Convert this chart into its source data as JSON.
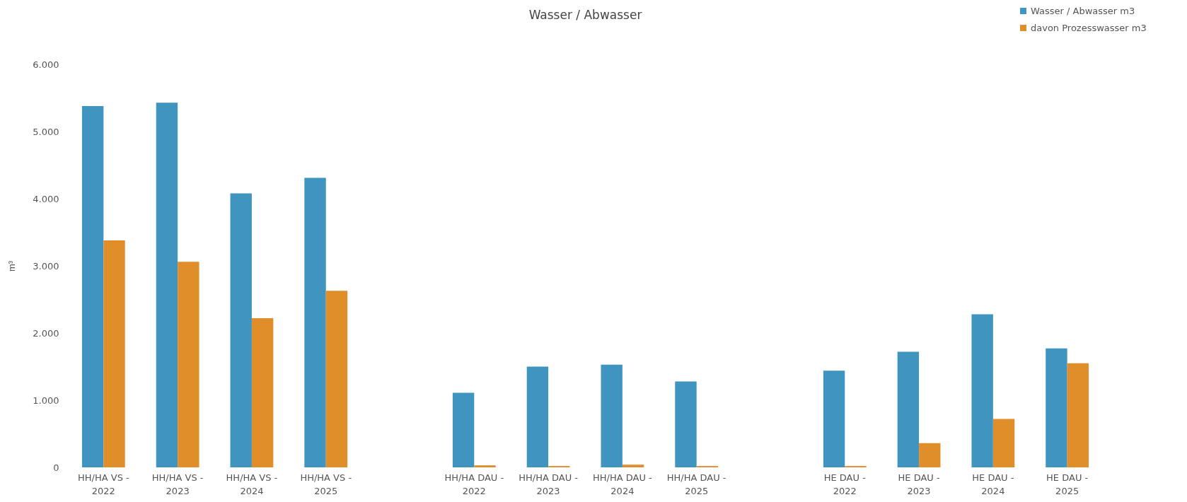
{
  "chart_data": {
    "type": "bar",
    "title": "Wasser / Abwasser",
    "ylabel": "m³",
    "categories": [
      "HH/HA VS - 2022",
      "HH/HA VS - 2023",
      "HH/HA VS - 2024",
      "HH/HA VS - 2025",
      null,
      "HH/HA DAU - 2022",
      "HH/HA DAU - 2023",
      "HH/HA DAU - 2024",
      "HH/HA DAU - 2025",
      null,
      "HE DAU - 2022",
      "HE DAU - 2023",
      "HE DAU - 2024",
      "HE DAU - 2025"
    ],
    "series": [
      {
        "name": "Wasser / Abwasser m3",
        "color": "#3f94c0",
        "values": [
          5380,
          5430,
          4080,
          4310,
          null,
          1110,
          1500,
          1530,
          1280,
          null,
          1440,
          1720,
          2280,
          1770
        ]
      },
      {
        "name": "davon Prozesswasser m3",
        "color": "#e08e2a",
        "values": [
          3380,
          3060,
          2220,
          2630,
          null,
          30,
          20,
          40,
          20,
          null,
          20,
          360,
          720,
          1550
        ]
      }
    ],
    "ylim": [
      0,
      6000
    ],
    "yticks": [
      0,
      {
        "value": 1000,
        "label": "1.000"
      },
      {
        "value": 2000,
        "label": "2.000"
      },
      {
        "value": 3000,
        "label": "3.000"
      },
      {
        "value": 4000,
        "label": "4.000"
      },
      {
        "value": 5000,
        "label": "5.000"
      },
      {
        "value": 6000,
        "label": "6.000"
      }
    ],
    "grid": false,
    "legend": "top right"
  }
}
